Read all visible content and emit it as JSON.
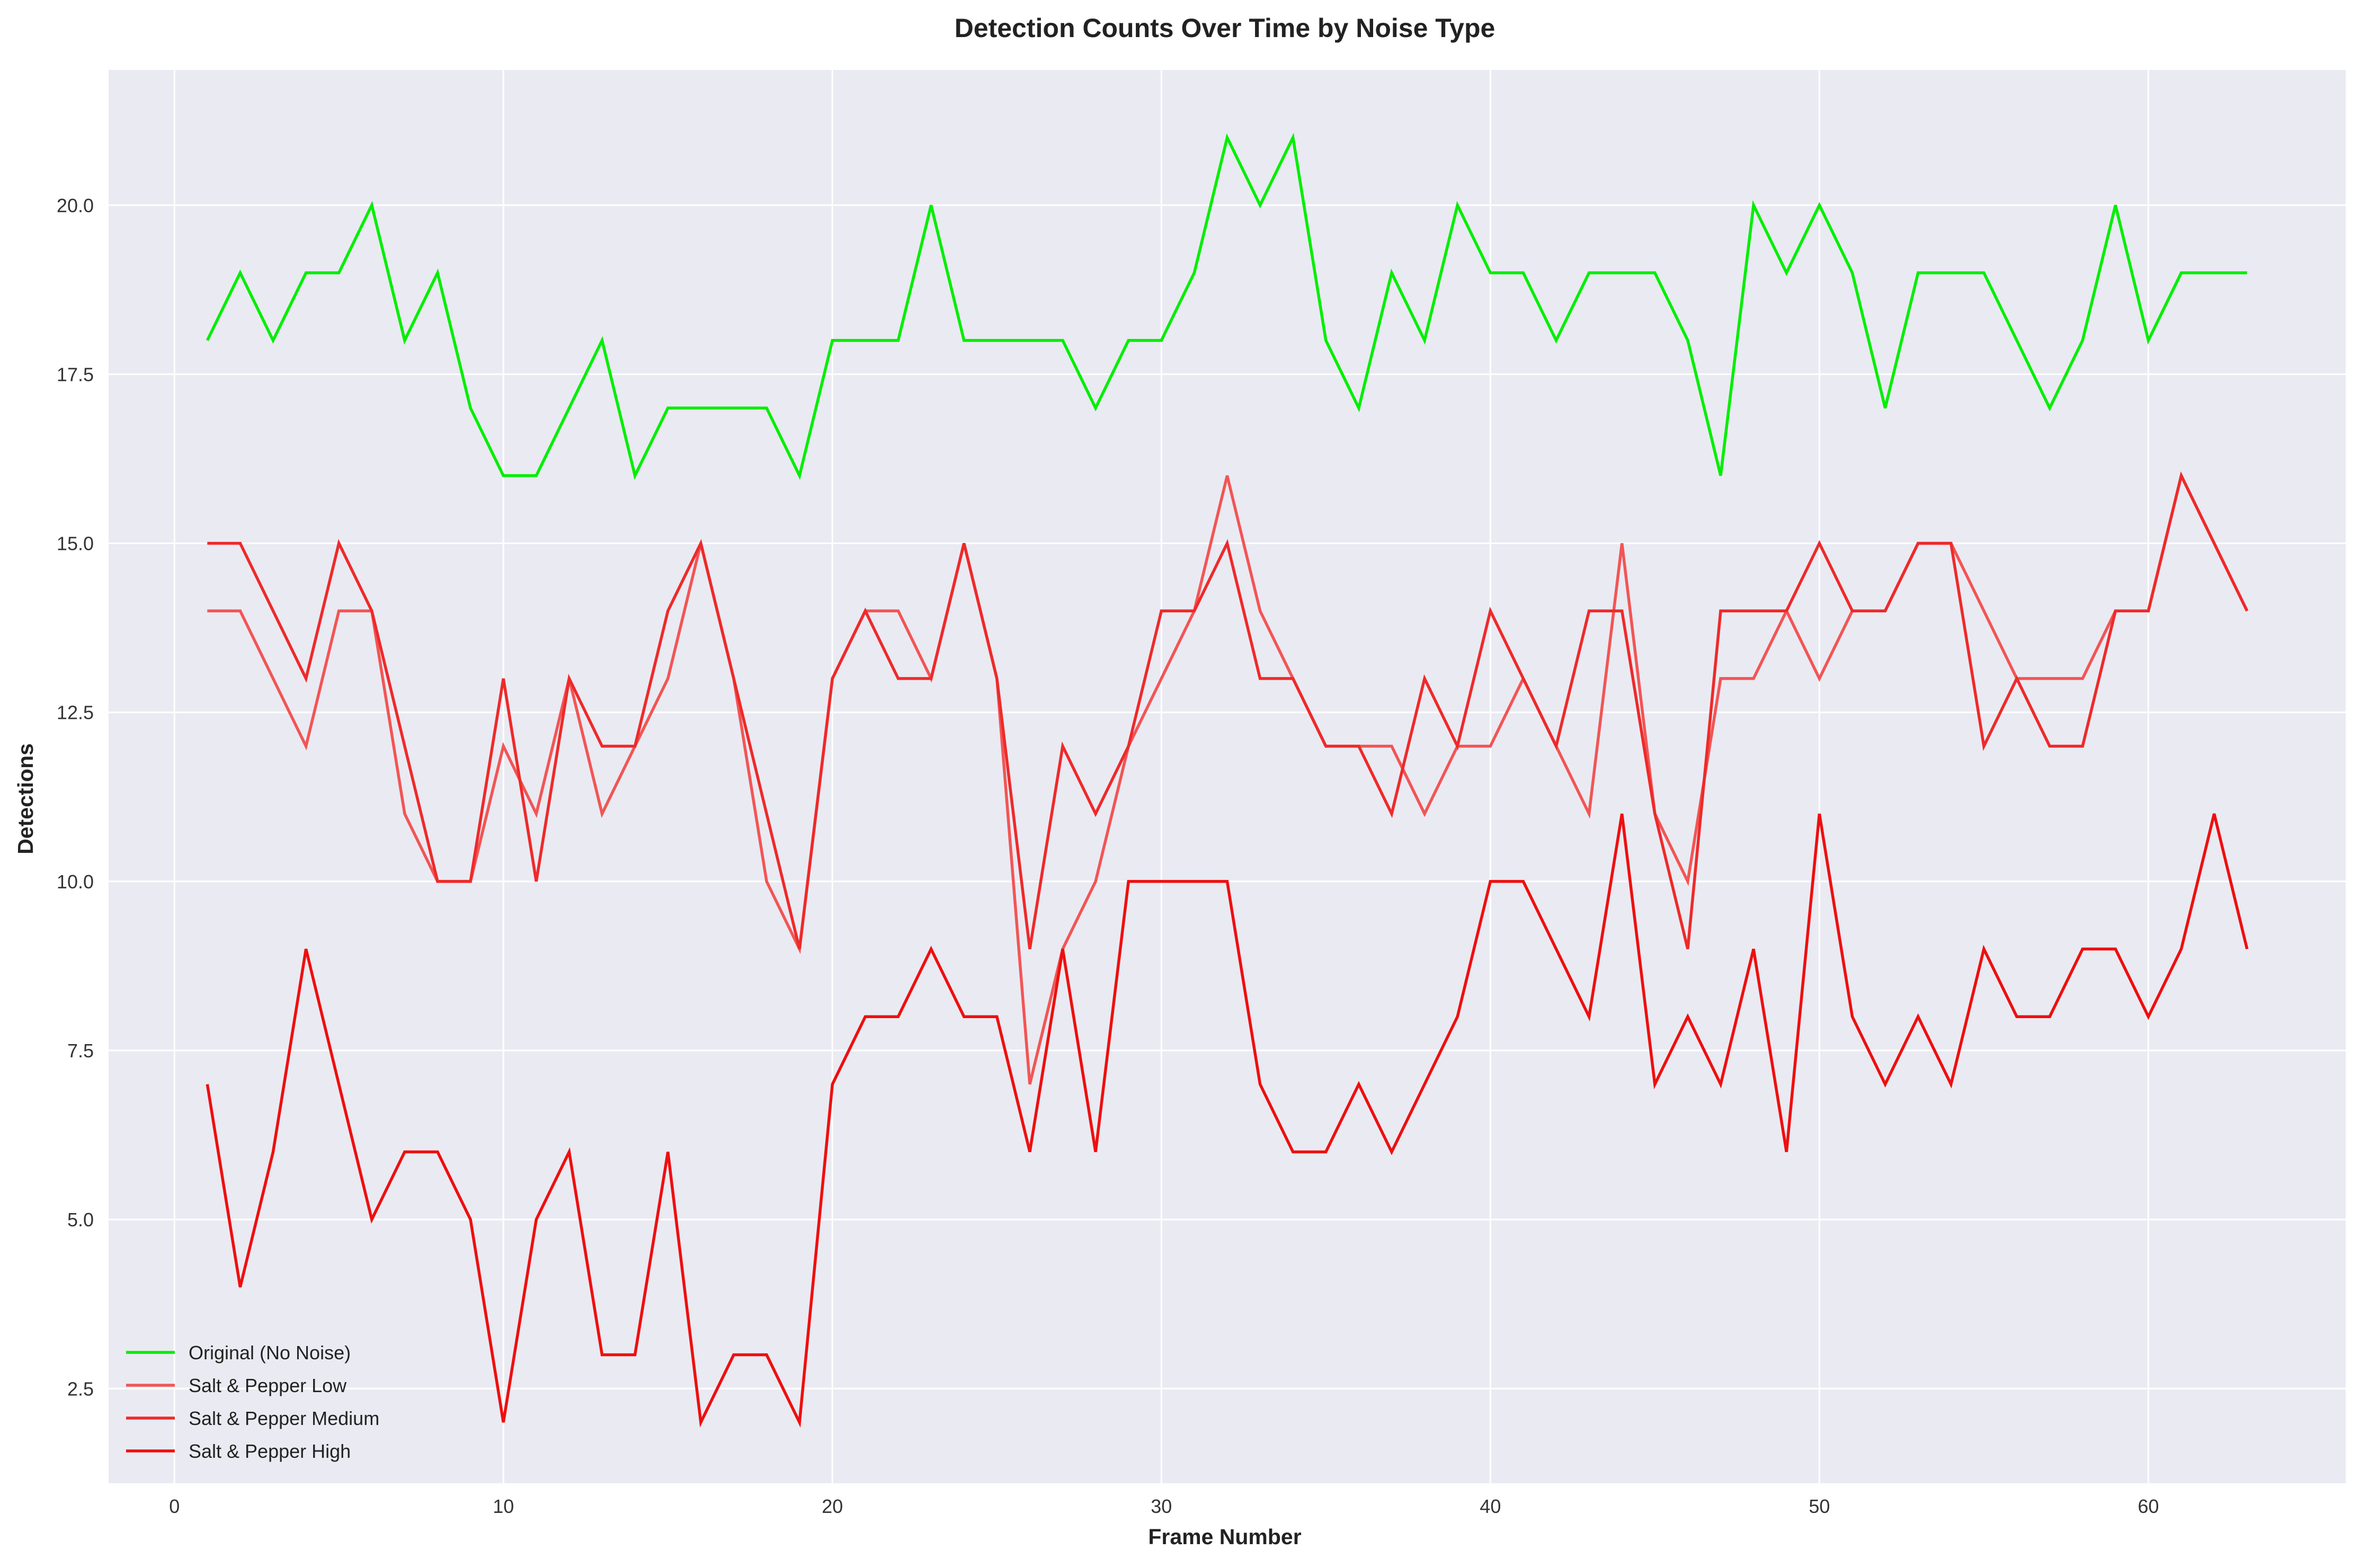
{
  "chart_data": {
    "type": "line",
    "title": "Detection Counts Over Time by Noise Type",
    "xlabel": "Frame Number",
    "ylabel": "Detections",
    "xlim": [
      -2,
      66
    ],
    "ylim": [
      1.1,
      22.0
    ],
    "xticks": [
      0,
      10,
      20,
      30,
      40,
      50,
      60
    ],
    "yticks": [
      2.5,
      5.0,
      7.5,
      10.0,
      12.5,
      15.0,
      17.5,
      20.0
    ],
    "xtick_labels": [
      "0",
      "10",
      "20",
      "30",
      "40",
      "50",
      "60"
    ],
    "ytick_labels": [
      "2.5",
      "5.0",
      "7.5",
      "10.0",
      "12.5",
      "15.0",
      "17.5",
      "20.0"
    ],
    "grid": true,
    "legend_position": "lower-left",
    "background_color": "#eaeaf2",
    "grid_color": "#ffffff",
    "x": [
      1,
      2,
      3,
      4,
      5,
      6,
      7,
      8,
      9,
      10,
      11,
      12,
      13,
      14,
      15,
      16,
      17,
      18,
      19,
      20,
      21,
      22,
      23,
      24,
      25,
      26,
      27,
      28,
      29,
      30,
      31,
      32,
      33,
      34,
      35,
      36,
      37,
      38,
      39,
      40,
      41,
      42,
      43,
      44,
      45,
      46,
      47,
      48,
      49,
      50,
      51,
      52,
      53,
      54,
      55,
      56,
      57,
      58,
      59,
      60,
      61,
      62,
      63
    ],
    "series": [
      {
        "name": "Original (No Noise)",
        "color": "#00ee00",
        "values": [
          18,
          19,
          18,
          19,
          19,
          20,
          18,
          19,
          17,
          16,
          16,
          17,
          18,
          16,
          17,
          17,
          17,
          17,
          16,
          18,
          18,
          18,
          20,
          18,
          18,
          18,
          18,
          17,
          18,
          18,
          19,
          21,
          20,
          21,
          18,
          17,
          19,
          18,
          20,
          19,
          19,
          18,
          19,
          19,
          19,
          18,
          16,
          20,
          19,
          20,
          19,
          17,
          19,
          19,
          19,
          18,
          17,
          18,
          20,
          18,
          19,
          19,
          19
        ]
      },
      {
        "name": "Salt & Pepper Low",
        "color": "#f25555",
        "values": [
          14,
          14,
          13,
          12,
          14,
          14,
          11,
          10,
          10,
          12,
          11,
          13,
          11,
          12,
          13,
          15,
          13,
          10,
          9,
          13,
          14,
          14,
          13,
          15,
          13,
          7,
          9,
          10,
          12,
          13,
          14,
          16,
          14,
          13,
          12,
          12,
          12,
          11,
          12,
          12,
          13,
          12,
          11,
          15,
          11,
          10,
          13,
          13,
          14,
          13,
          14,
          14,
          15,
          15,
          14,
          13,
          13,
          13,
          14,
          14,
          16,
          15,
          14
        ]
      },
      {
        "name": "Salt & Pepper Medium",
        "color": "#ee2a2a",
        "values": [
          15,
          15,
          14,
          13,
          15,
          14,
          12,
          10,
          10,
          13,
          10,
          13,
          12,
          12,
          14,
          15,
          13,
          11,
          9,
          13,
          14,
          13,
          13,
          15,
          13,
          9,
          12,
          11,
          12,
          14,
          14,
          15,
          13,
          13,
          12,
          12,
          11,
          13,
          12,
          14,
          13,
          12,
          14,
          14,
          11,
          9,
          14,
          14,
          14,
          15,
          14,
          14,
          15,
          15,
          12,
          13,
          12,
          12,
          14,
          14,
          16,
          15,
          14
        ]
      },
      {
        "name": "Salt & Pepper High",
        "color": "#ee0f0f",
        "values": [
          7,
          4,
          6,
          9,
          7,
          5,
          6,
          6,
          5,
          2,
          5,
          6,
          3,
          3,
          6,
          2,
          3,
          3,
          2,
          7,
          8,
          8,
          9,
          8,
          8,
          6,
          9,
          6,
          10,
          10,
          10,
          10,
          7,
          6,
          6,
          7,
          6,
          7,
          8,
          10,
          10,
          9,
          8,
          11,
          7,
          8,
          7,
          9,
          6,
          11,
          8,
          7,
          8,
          7,
          9,
          8,
          8,
          9,
          9,
          8,
          9,
          11,
          9
        ]
      }
    ]
  }
}
